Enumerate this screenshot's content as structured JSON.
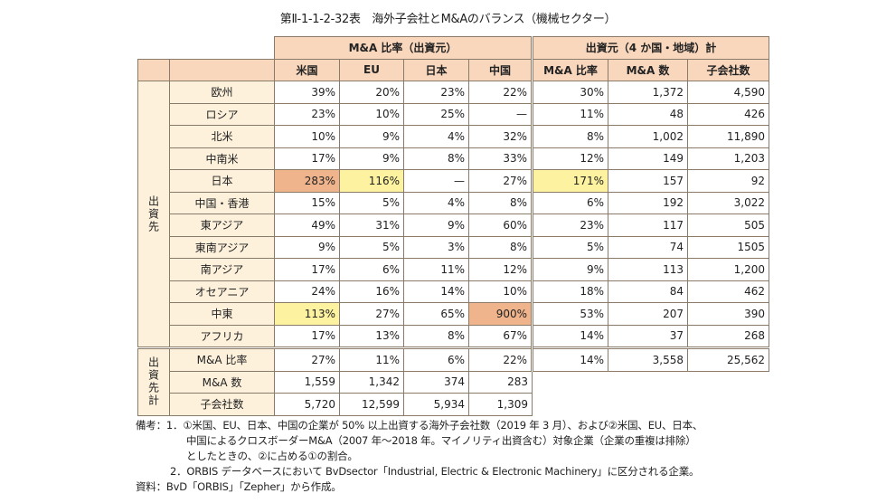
{
  "title": "第Ⅱ-1-1-2-32表　海外子会社とM&Aのバランス（機械セクター）",
  "colors": {
    "header": "#f8d7bd",
    "label": "#fdf1dc",
    "orange": "#f0b48c",
    "yellow": "#fdf2a0"
  },
  "header": {
    "group1": "M&A 比率（出資元）",
    "group2": "出資元（4 か国・地域）計",
    "columns": [
      "米国",
      "EU",
      "日本",
      "中国",
      "M&A 比率",
      "M&A 数",
      "子会社数"
    ]
  },
  "group_dest": "出資先",
  "group_total": "出資先計",
  "rows": [
    {
      "label": "欧州",
      "values": [
        "39%",
        "20%",
        "23%",
        "22%",
        "30%",
        "1,372",
        "4,590"
      ]
    },
    {
      "label": "ロシア",
      "values": [
        "23%",
        "10%",
        "25%",
        "—",
        "11%",
        "48",
        "426"
      ]
    },
    {
      "label": "北米",
      "values": [
        "10%",
        "9%",
        "4%",
        "32%",
        "8%",
        "1,002",
        "11,890"
      ]
    },
    {
      "label": "中南米",
      "values": [
        "17%",
        "9%",
        "8%",
        "33%",
        "12%",
        "149",
        "1,203"
      ]
    },
    {
      "label": "日本",
      "values": [
        "283%",
        "116%",
        "—",
        "27%",
        "171%",
        "157",
        "92"
      ],
      "highlight": [
        "orange",
        "yellow",
        "",
        "",
        "yellow",
        "",
        ""
      ]
    },
    {
      "label": "中国・香港",
      "values": [
        "15%",
        "5%",
        "4%",
        "8%",
        "6%",
        "192",
        "3,022"
      ]
    },
    {
      "label": "東アジア",
      "values": [
        "49%",
        "31%",
        "9%",
        "60%",
        "23%",
        "117",
        "505"
      ]
    },
    {
      "label": "東南アジア",
      "values": [
        "9%",
        "5%",
        "3%",
        "8%",
        "5%",
        "74",
        "1505"
      ]
    },
    {
      "label": "南アジア",
      "values": [
        "17%",
        "6%",
        "11%",
        "12%",
        "9%",
        "113",
        "1,200"
      ]
    },
    {
      "label": "オセアニア",
      "values": [
        "24%",
        "16%",
        "14%",
        "10%",
        "18%",
        "84",
        "462"
      ]
    },
    {
      "label": "中東",
      "values": [
        "113%",
        "27%",
        "65%",
        "900%",
        "53%",
        "207",
        "390"
      ],
      "highlight": [
        "yellow",
        "",
        "",
        "orange",
        "",
        "",
        ""
      ]
    },
    {
      "label": "アフリカ",
      "values": [
        "17%",
        "13%",
        "8%",
        "67%",
        "14%",
        "37",
        "268"
      ]
    }
  ],
  "totals": [
    {
      "label": "M&A 比率",
      "values": [
        "27%",
        "11%",
        "6%",
        "22%",
        "14%",
        "3,558",
        "25,562"
      ]
    },
    {
      "label": "M&A 数",
      "values": [
        "1,559",
        "1,342",
        "374",
        "283"
      ]
    },
    {
      "label": "子会社数",
      "values": [
        "5,720",
        "12,599",
        "5,934",
        "1,309"
      ]
    }
  ],
  "notes": {
    "prefix": "備考：",
    "n1_line1": "1．①米国、EU、日本、中国の企業が 50% 以上出資する海外子会社数（2019 年 3 月）、および②米国、EU、日本、",
    "n1_line2": "中国によるクロスボーダーM&A（2007 年〜2018 年。マイノリティ出資含む）対象企業（企業の重複は排除）",
    "n1_line3": "としたときの、②に占める①の割合。",
    "n2": "2．ORBIS データベースにおいて BvDsector「Industrial, Electric & Electronic Machinery」に区分される企業。",
    "source": "資料：BvD「ORBIS」「Zepher」から作成。"
  }
}
